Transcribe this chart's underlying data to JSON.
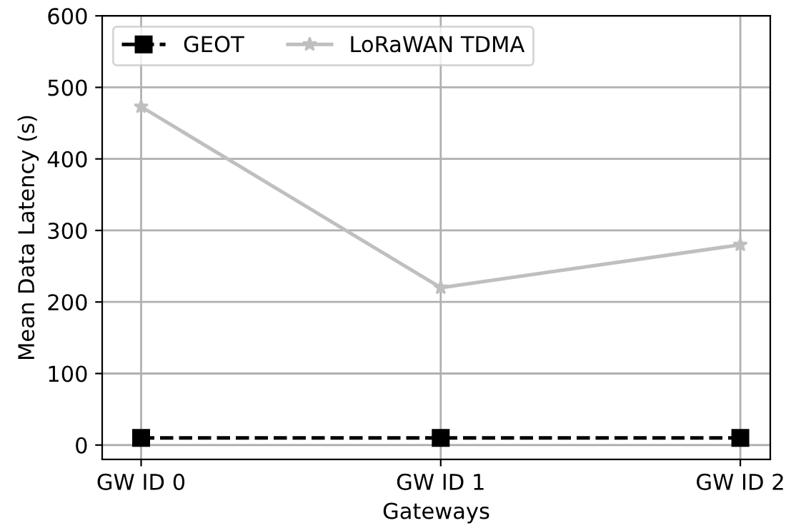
{
  "chart_data": {
    "type": "line",
    "xlabel": "Gateways",
    "ylabel": "Mean Data Latency (s)",
    "categories": [
      "GW ID 0",
      "GW ID 1",
      "GW ID 2"
    ],
    "series": [
      {
        "name": "GEOT",
        "color": "#000000",
        "values": [
          10,
          10,
          10
        ],
        "marker": "square",
        "line_style": "dashed"
      },
      {
        "name": "LoRaWAN TDMA",
        "color": "#bfbfbf",
        "values": [
          473,
          220,
          280
        ],
        "marker": "star",
        "line_style": "solid"
      }
    ],
    "ylim": [
      -20,
      600
    ],
    "yticks": [
      0,
      100,
      200,
      300,
      400,
      500,
      600
    ],
    "grid": true,
    "legend": "top left"
  }
}
